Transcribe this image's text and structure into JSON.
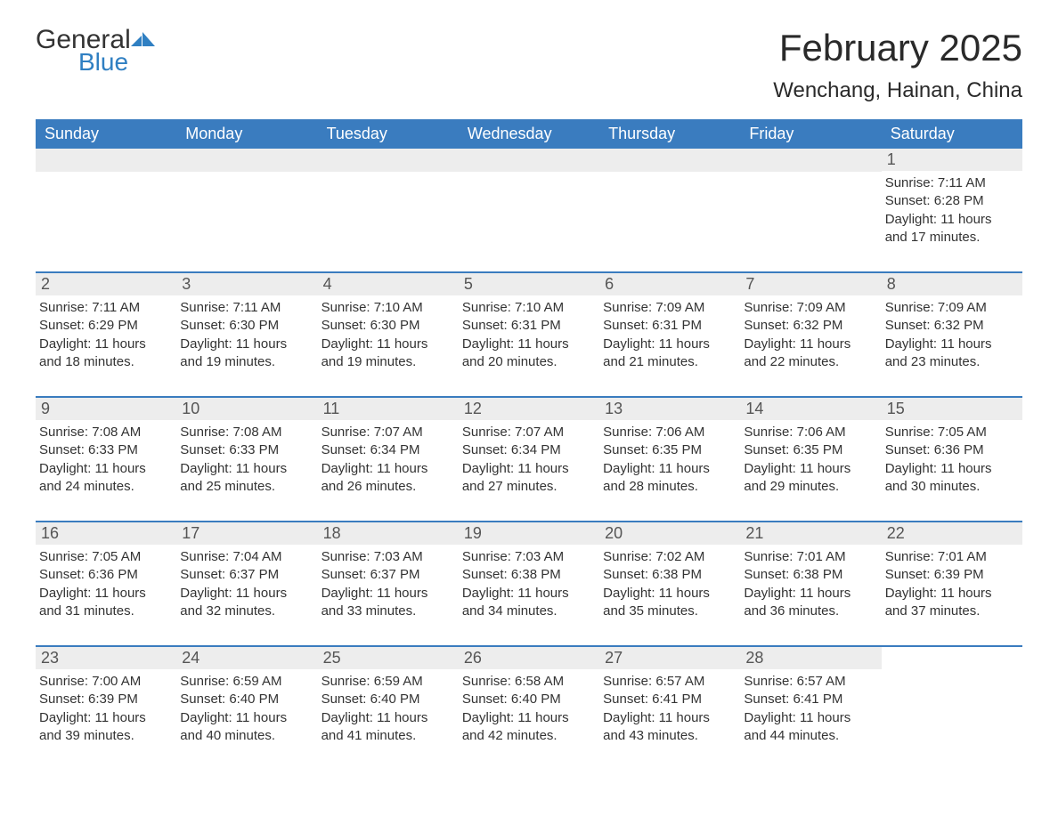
{
  "brand": {
    "word1": "General",
    "word2": "Blue"
  },
  "title": "February 2025",
  "location": "Wenchang, Hainan, China",
  "colors": {
    "header_bg": "#3a7cbf",
    "header_text": "#ffffff",
    "row_divider": "#3a7cbf",
    "daynum_bg": "#ededed",
    "brand_blue": "#2f7fc2",
    "body_text": "#333333",
    "page_bg": "#ffffff"
  },
  "typography": {
    "title_fontsize": 42,
    "location_fontsize": 24,
    "dow_fontsize": 18,
    "daynum_fontsize": 18,
    "body_fontsize": 15
  },
  "layout": {
    "columns": 7,
    "leading_blanks": 6,
    "trailing_blanks": 1
  },
  "days_of_week": [
    "Sunday",
    "Monday",
    "Tuesday",
    "Wednesday",
    "Thursday",
    "Friday",
    "Saturday"
  ],
  "days": [
    {
      "n": 1,
      "sunrise": "7:11 AM",
      "sunset": "6:28 PM",
      "daylight": "11 hours and 17 minutes."
    },
    {
      "n": 2,
      "sunrise": "7:11 AM",
      "sunset": "6:29 PM",
      "daylight": "11 hours and 18 minutes."
    },
    {
      "n": 3,
      "sunrise": "7:11 AM",
      "sunset": "6:30 PM",
      "daylight": "11 hours and 19 minutes."
    },
    {
      "n": 4,
      "sunrise": "7:10 AM",
      "sunset": "6:30 PM",
      "daylight": "11 hours and 19 minutes."
    },
    {
      "n": 5,
      "sunrise": "7:10 AM",
      "sunset": "6:31 PM",
      "daylight": "11 hours and 20 minutes."
    },
    {
      "n": 6,
      "sunrise": "7:09 AM",
      "sunset": "6:31 PM",
      "daylight": "11 hours and 21 minutes."
    },
    {
      "n": 7,
      "sunrise": "7:09 AM",
      "sunset": "6:32 PM",
      "daylight": "11 hours and 22 minutes."
    },
    {
      "n": 8,
      "sunrise": "7:09 AM",
      "sunset": "6:32 PM",
      "daylight": "11 hours and 23 minutes."
    },
    {
      "n": 9,
      "sunrise": "7:08 AM",
      "sunset": "6:33 PM",
      "daylight": "11 hours and 24 minutes."
    },
    {
      "n": 10,
      "sunrise": "7:08 AM",
      "sunset": "6:33 PM",
      "daylight": "11 hours and 25 minutes."
    },
    {
      "n": 11,
      "sunrise": "7:07 AM",
      "sunset": "6:34 PM",
      "daylight": "11 hours and 26 minutes."
    },
    {
      "n": 12,
      "sunrise": "7:07 AM",
      "sunset": "6:34 PM",
      "daylight": "11 hours and 27 minutes."
    },
    {
      "n": 13,
      "sunrise": "7:06 AM",
      "sunset": "6:35 PM",
      "daylight": "11 hours and 28 minutes."
    },
    {
      "n": 14,
      "sunrise": "7:06 AM",
      "sunset": "6:35 PM",
      "daylight": "11 hours and 29 minutes."
    },
    {
      "n": 15,
      "sunrise": "7:05 AM",
      "sunset": "6:36 PM",
      "daylight": "11 hours and 30 minutes."
    },
    {
      "n": 16,
      "sunrise": "7:05 AM",
      "sunset": "6:36 PM",
      "daylight": "11 hours and 31 minutes."
    },
    {
      "n": 17,
      "sunrise": "7:04 AM",
      "sunset": "6:37 PM",
      "daylight": "11 hours and 32 minutes."
    },
    {
      "n": 18,
      "sunrise": "7:03 AM",
      "sunset": "6:37 PM",
      "daylight": "11 hours and 33 minutes."
    },
    {
      "n": 19,
      "sunrise": "7:03 AM",
      "sunset": "6:38 PM",
      "daylight": "11 hours and 34 minutes."
    },
    {
      "n": 20,
      "sunrise": "7:02 AM",
      "sunset": "6:38 PM",
      "daylight": "11 hours and 35 minutes."
    },
    {
      "n": 21,
      "sunrise": "7:01 AM",
      "sunset": "6:38 PM",
      "daylight": "11 hours and 36 minutes."
    },
    {
      "n": 22,
      "sunrise": "7:01 AM",
      "sunset": "6:39 PM",
      "daylight": "11 hours and 37 minutes."
    },
    {
      "n": 23,
      "sunrise": "7:00 AM",
      "sunset": "6:39 PM",
      "daylight": "11 hours and 39 minutes."
    },
    {
      "n": 24,
      "sunrise": "6:59 AM",
      "sunset": "6:40 PM",
      "daylight": "11 hours and 40 minutes."
    },
    {
      "n": 25,
      "sunrise": "6:59 AM",
      "sunset": "6:40 PM",
      "daylight": "11 hours and 41 minutes."
    },
    {
      "n": 26,
      "sunrise": "6:58 AM",
      "sunset": "6:40 PM",
      "daylight": "11 hours and 42 minutes."
    },
    {
      "n": 27,
      "sunrise": "6:57 AM",
      "sunset": "6:41 PM",
      "daylight": "11 hours and 43 minutes."
    },
    {
      "n": 28,
      "sunrise": "6:57 AM",
      "sunset": "6:41 PM",
      "daylight": "11 hours and 44 minutes."
    }
  ],
  "labels": {
    "sunrise_prefix": "Sunrise: ",
    "sunset_prefix": "Sunset: ",
    "daylight_prefix": "Daylight: "
  }
}
